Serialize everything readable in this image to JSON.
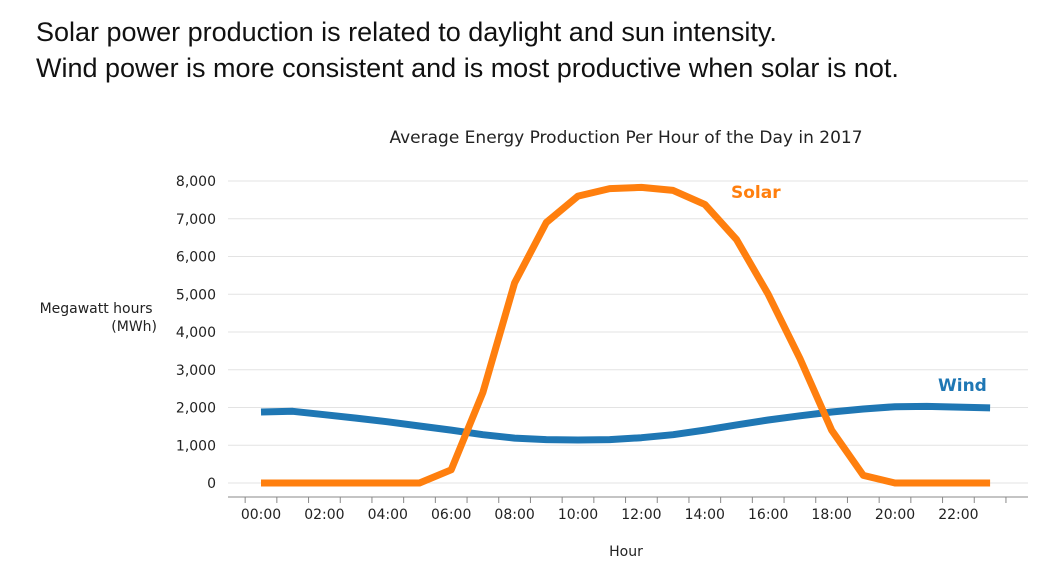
{
  "slide": {
    "headline_lines": [
      "Solar power production is related to daylight and sun intensity.",
      "Wind power is more consistent and is most productive when solar is not."
    ]
  },
  "chart_data": {
    "type": "line",
    "title": "Average Energy Production Per Hour of the Day in 2017",
    "xlabel": "Hour",
    "ylabel": "Megawatt hours\n(MWh)",
    "x": [
      "00:00",
      "01:00",
      "02:00",
      "03:00",
      "04:00",
      "05:00",
      "06:00",
      "07:00",
      "08:00",
      "09:00",
      "10:00",
      "11:00",
      "12:00",
      "13:00",
      "14:00",
      "15:00",
      "16:00",
      "17:00",
      "18:00",
      "19:00",
      "20:00",
      "21:00",
      "22:00",
      "23:00"
    ],
    "xtick_labels": [
      "00:00",
      "02:00",
      "04:00",
      "06:00",
      "08:00",
      "10:00",
      "12:00",
      "14:00",
      "16:00",
      "18:00",
      "20:00",
      "22:00"
    ],
    "ylim": [
      0,
      8000
    ],
    "yticks": [
      0,
      1000,
      2000,
      3000,
      4000,
      5000,
      6000,
      7000,
      8000
    ],
    "ytick_labels": [
      "0",
      "1,000",
      "2,000",
      "3,000",
      "4,000",
      "5,000",
      "6,000",
      "7,000",
      "8,000"
    ],
    "grid": "horizontal",
    "series": [
      {
        "name": "Solar",
        "color": "#ff7f0e",
        "values": [
          0,
          0,
          0,
          0,
          0,
          0,
          350,
          2400,
          5300,
          6900,
          7600,
          7800,
          7830,
          7750,
          7380,
          6450,
          5000,
          3300,
          1400,
          200,
          0,
          0,
          0,
          0
        ]
      },
      {
        "name": "Wind",
        "color": "#1f77b4",
        "values": [
          1880,
          1900,
          1810,
          1720,
          1620,
          1510,
          1400,
          1280,
          1190,
          1150,
          1140,
          1150,
          1200,
          1280,
          1400,
          1540,
          1670,
          1780,
          1880,
          1960,
          2020,
          2030,
          2010,
          1990
        ]
      }
    ]
  }
}
